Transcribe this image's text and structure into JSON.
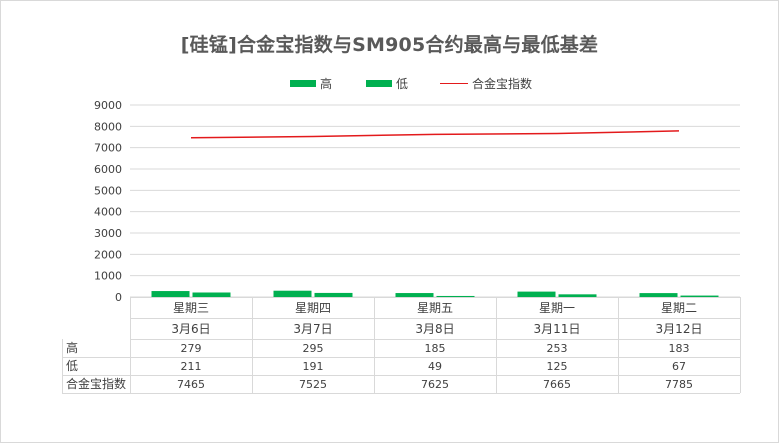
{
  "chart_data": {
    "type": "bar",
    "title": "[硅锰]合金宝指数与SM905合约最高与最低基差",
    "categories": [
      "星期三",
      "星期四",
      "星期五",
      "星期一",
      "星期二"
    ],
    "dates": [
      "3月6日",
      "3月7日",
      "3月8日",
      "3月11日",
      "3月12日"
    ],
    "series": [
      {
        "name": "高",
        "kind": "bar",
        "color": "#00b050",
        "values": [
          279,
          295,
          185,
          253,
          183
        ]
      },
      {
        "name": "低",
        "kind": "bar",
        "color": "#00b050",
        "values": [
          211,
          191,
          49,
          125,
          67
        ]
      },
      {
        "name": "合金宝指数",
        "kind": "line",
        "color": "#e31a1c",
        "values": [
          7465,
          7525,
          7625,
          7665,
          7785
        ]
      }
    ],
    "ylim": [
      0,
      9000
    ],
    "yticks": [
      0,
      1000,
      2000,
      3000,
      4000,
      5000,
      6000,
      7000,
      8000,
      9000
    ],
    "grid": true,
    "legend": "top",
    "data_table": true
  }
}
